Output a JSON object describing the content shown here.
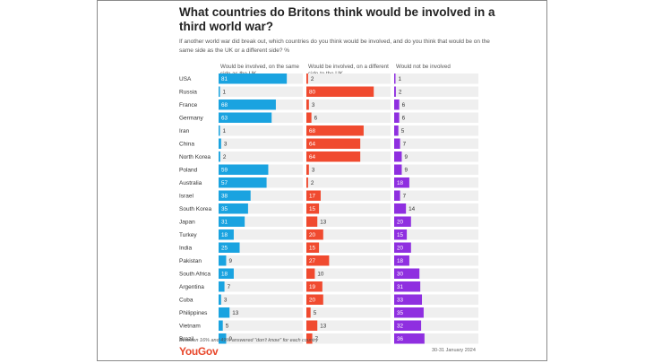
{
  "title": "What countries do Britons think would be involved in a third world war?",
  "subtitle": "If another world war did break out, which countries do you think would be involved, and do you think that would be on the same side as the UK or a different side? %",
  "footnote": "Between 16% and 49% answered \"don't know\" for each country",
  "date": "30-31 January 2024",
  "brand": "YouGov",
  "colors": {
    "same_side": "#1aa3e0",
    "different_side": "#f04a2f",
    "not_involved": "#8f2fe0",
    "track": "#efefef"
  },
  "chart_data": {
    "type": "bar",
    "categories": [
      "USA",
      "Russia",
      "France",
      "Germany",
      "Iran",
      "China",
      "North Korea",
      "Poland",
      "Australia",
      "Israel",
      "South Korea",
      "Japan",
      "Turkey",
      "India",
      "Pakistan",
      "South Africa",
      "Argentina",
      "Cuba",
      "Philippines",
      "Vietnam",
      "Brazil"
    ],
    "series": [
      {
        "name": "Would be involved, on the same side as the UK",
        "values": [
          81,
          1,
          68,
          63,
          1,
          3,
          2,
          59,
          57,
          38,
          35,
          31,
          18,
          25,
          9,
          18,
          7,
          3,
          13,
          5,
          9
        ]
      },
      {
        "name": "Would be involved, on a different side to the UK",
        "values": [
          2,
          80,
          3,
          6,
          68,
          64,
          64,
          3,
          2,
          17,
          15,
          13,
          20,
          15,
          27,
          10,
          19,
          20,
          5,
          13,
          7
        ]
      },
      {
        "name": "Would not be involved",
        "values": [
          1,
          2,
          6,
          6,
          5,
          7,
          9,
          9,
          18,
          7,
          14,
          20,
          15,
          20,
          18,
          30,
          31,
          33,
          35,
          32,
          36
        ]
      }
    ],
    "xlim": [
      0,
      100
    ]
  }
}
